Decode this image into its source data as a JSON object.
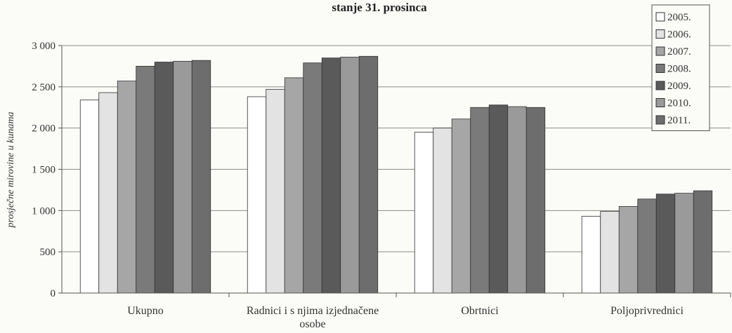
{
  "chart_data": {
    "type": "bar",
    "title": "stanje 31. prosinca",
    "ylabel": "prosječne mirovine u kunama",
    "xlabel": "",
    "ylim": [
      0,
      3000
    ],
    "yticks": [
      0,
      500,
      1000,
      1500,
      2000,
      2500,
      3000
    ],
    "ytick_labels": [
      "0",
      "500",
      "1 000",
      "1 500",
      "2 000",
      "2 500",
      "3 000"
    ],
    "categories": [
      "Ukupno",
      "Radnici i s njima izjednačene osobe",
      "Obrtnici",
      "Poljoprivrednici"
    ],
    "category_lines": [
      [
        "Ukupno"
      ],
      [
        "Radnici i s njima izjednačene",
        "osobe"
      ],
      [
        "Obrtnici"
      ],
      [
        "Poljoprivrednici"
      ]
    ],
    "series": [
      {
        "name": "2005.",
        "values": [
          2340,
          2380,
          1950,
          930
        ],
        "color": "#ffffff"
      },
      {
        "name": "2006.",
        "values": [
          2430,
          2470,
          2000,
          990
        ],
        "color": "#e3e3e3"
      },
      {
        "name": "2007.",
        "values": [
          2570,
          2610,
          2110,
          1050
        ],
        "color": "#a6a6a6"
      },
      {
        "name": "2008.",
        "values": [
          2750,
          2790,
          2250,
          1140
        ],
        "color": "#7a7a7a"
      },
      {
        "name": "2009.",
        "values": [
          2800,
          2850,
          2280,
          1200
        ],
        "color": "#5a5a5a"
      },
      {
        "name": "2010.",
        "values": [
          2810,
          2860,
          2260,
          1210
        ],
        "color": "#9a9a9a"
      },
      {
        "name": "2011.",
        "values": [
          2820,
          2870,
          2250,
          1240
        ],
        "color": "#6d6d6d"
      }
    ],
    "grid": true,
    "legend_position": "top-right"
  }
}
